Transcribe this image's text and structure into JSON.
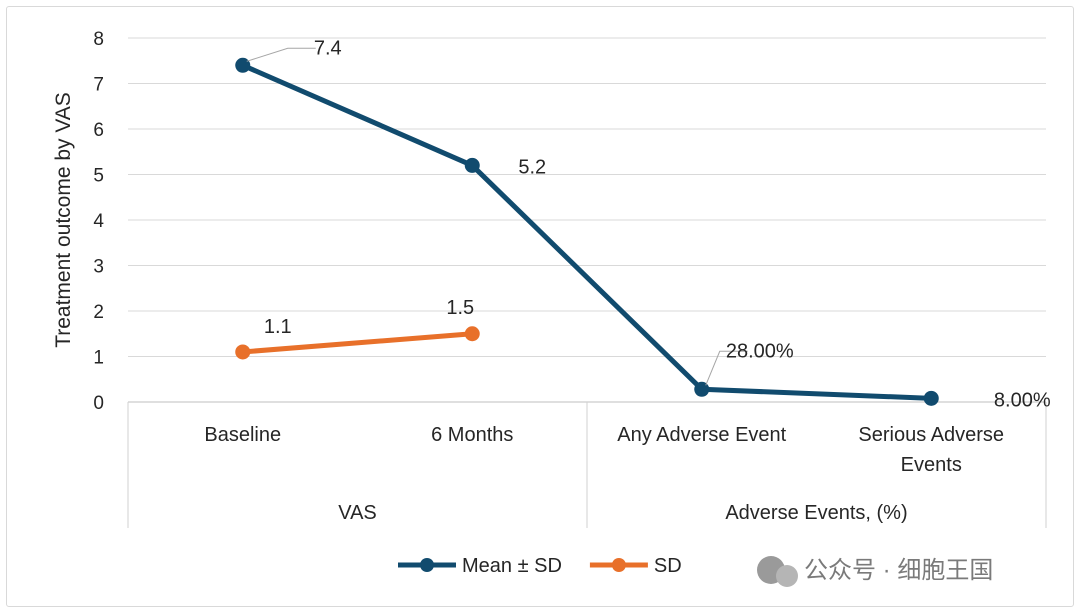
{
  "chart_data": {
    "type": "line",
    "ylabel": "Treatment outcome by VAS",
    "xlabel": "",
    "ylim": [
      0,
      8
    ],
    "yticks": [
      0,
      1,
      2,
      3,
      4,
      5,
      6,
      7,
      8
    ],
    "grid": true,
    "categories": [
      "Baseline",
      "6 Months",
      "Any Adverse Event",
      "Serious Adverse Events"
    ],
    "category_lines": [
      [
        "Baseline"
      ],
      [
        "6 Months"
      ],
      [
        "Any Adverse Event"
      ],
      [
        "Serious Adverse",
        "Events"
      ]
    ],
    "groups": [
      {
        "label": "VAS",
        "span": [
          0,
          1
        ]
      },
      {
        "label": "Adverse Events, (%)",
        "span": [
          2,
          3
        ]
      }
    ],
    "series": [
      {
        "name": "Mean ± SD",
        "color": "#114b6e",
        "values": [
          7.4,
          5.2,
          0.28,
          0.08
        ],
        "labels": [
          "7.4",
          "5.2",
          "28.00%",
          "8.00%"
        ]
      },
      {
        "name": "SD",
        "color": "#e8702a",
        "values": [
          1.1,
          1.5,
          null,
          null
        ],
        "labels": [
          "1.1",
          "1.5",
          "",
          ""
        ]
      }
    ],
    "legend_position": "bottom"
  },
  "watermark": "公众号 · 细胞王国"
}
